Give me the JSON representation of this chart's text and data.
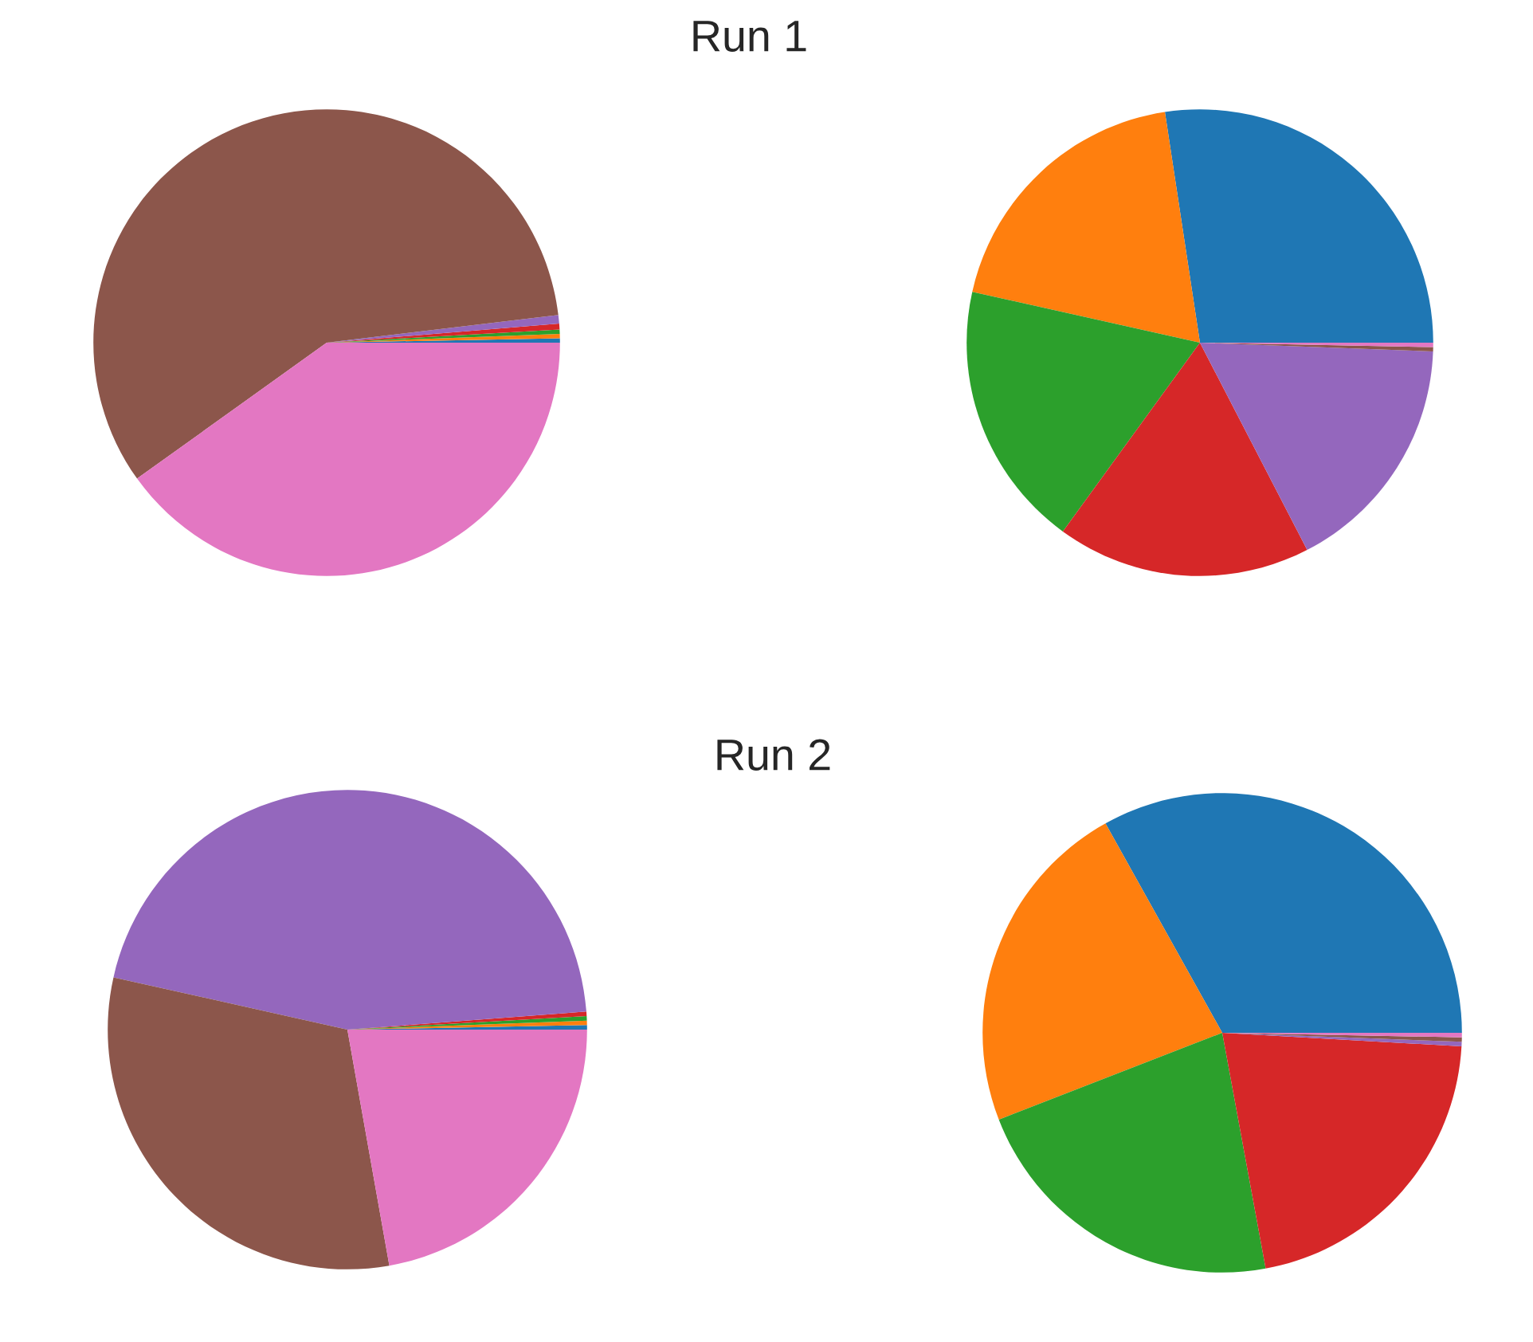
{
  "chart_data": [
    {
      "type": "pie",
      "title": "Run 1",
      "categories": [
        null,
        null,
        null,
        null,
        null,
        null,
        null
      ],
      "values": [
        0.3,
        0.3,
        0.3,
        0.4,
        0.6,
        58.0,
        40.1
      ],
      "colors": [
        "#1f77b4",
        "#ff7f0e",
        "#2ca02c",
        "#d62728",
        "#9467bd",
        "#8c564b",
        "#e377c2"
      ]
    },
    {
      "type": "pie",
      "categories": [
        null,
        null,
        null,
        null,
        null,
        null,
        null
      ],
      "values": [
        27.4,
        19.1,
        18.5,
        17.6,
        16.8,
        0.3,
        0.3
      ],
      "colors": [
        "#1f77b4",
        "#ff7f0e",
        "#2ca02c",
        "#d62728",
        "#9467bd",
        "#8c564b",
        "#e377c2"
      ]
    },
    {
      "type": "pie",
      "title": "Run 2",
      "categories": [
        null,
        null,
        null,
        null,
        null,
        null,
        null
      ],
      "values": [
        0.3,
        0.3,
        0.3,
        0.3,
        45.3,
        31.3,
        22.2
      ],
      "colors": [
        "#1f77b4",
        "#ff7f0e",
        "#2ca02c",
        "#d62728",
        "#9467bd",
        "#8c564b",
        "#e377c2"
      ]
    },
    {
      "type": "pie",
      "categories": [
        null,
        null,
        null,
        null,
        null,
        null,
        null
      ],
      "values": [
        33.1,
        22.8,
        22.0,
        21.2,
        0.3,
        0.3,
        0.3
      ],
      "colors": [
        "#1f77b4",
        "#ff7f0e",
        "#2ca02c",
        "#d62728",
        "#9467bd",
        "#8c564b",
        "#e377c2"
      ]
    }
  ]
}
